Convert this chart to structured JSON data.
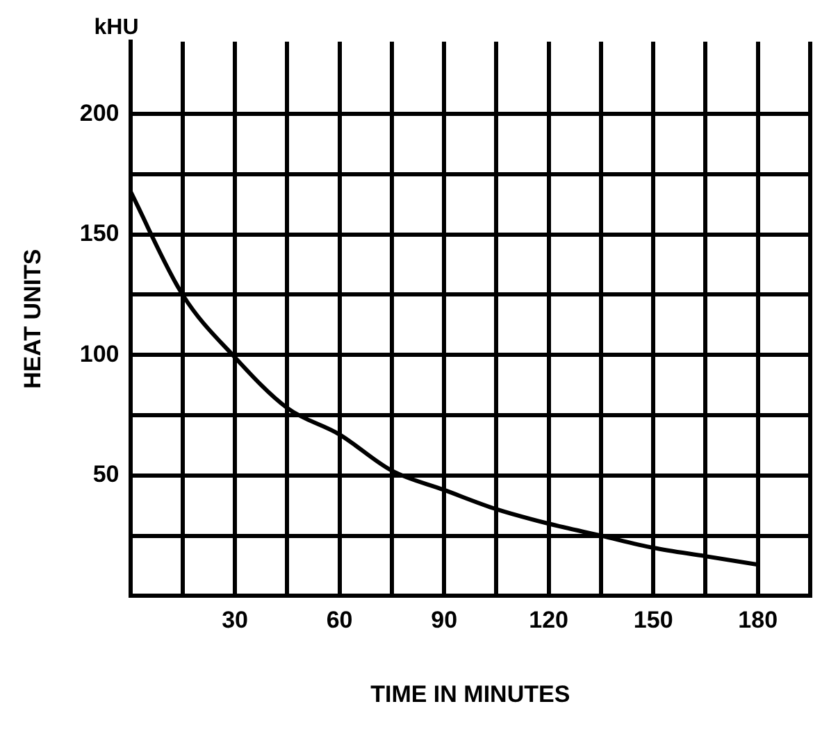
{
  "chart_data": {
    "type": "line",
    "xlabel": "TIME IN MINUTES",
    "ylabel": "HEAT UNITS",
    "annotations": [
      "kHU"
    ],
    "x": [
      0,
      15,
      30,
      45,
      60,
      75,
      90,
      105,
      120,
      135,
      150,
      165,
      180
    ],
    "series": [
      {
        "color": "#000000",
        "values": [
          168,
          125,
          99,
          78,
          67,
          52,
          44,
          36,
          30,
          25,
          20,
          16.5,
          13
        ]
      }
    ],
    "xlim": [
      0,
      195
    ],
    "ylim": [
      0,
      230
    ],
    "xticks": [
      {
        "value": 0,
        "label": null
      },
      {
        "value": 15,
        "label": null
      },
      30,
      {
        "value": 45,
        "label": null
      },
      60,
      {
        "value": 75,
        "label": null
      },
      90,
      {
        "value": 105,
        "label": null
      },
      120,
      {
        "value": 135,
        "label": null
      },
      150,
      {
        "value": 165,
        "label": null
      },
      180,
      {
        "value": 195,
        "label": null
      }
    ],
    "yticks": [
      {
        "value": 25,
        "label": null
      },
      50,
      {
        "value": 75,
        "label": null
      },
      100,
      {
        "value": 125,
        "label": null
      },
      150,
      {
        "value": 175,
        "label": null
      },
      200
    ],
    "grid": true,
    "legend": false,
    "marker": "none",
    "line_style": "solid"
  }
}
